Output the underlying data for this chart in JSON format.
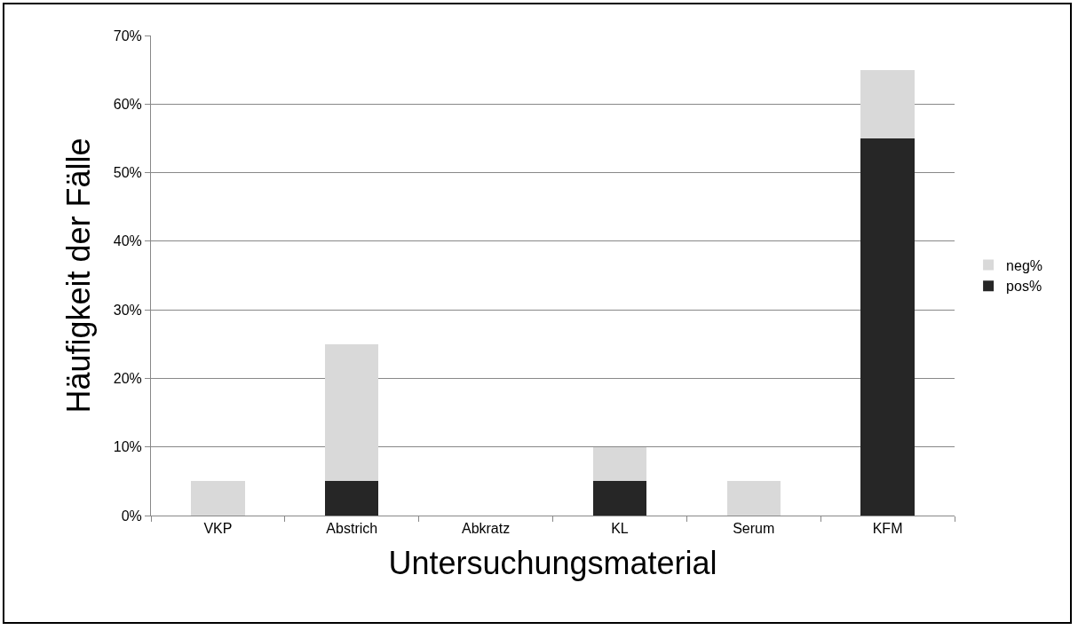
{
  "chart_data": {
    "type": "bar",
    "xlabel": "Untersuchungsmaterial",
    "ylabel": "Häufigkeit der Fälle",
    "categories": [
      "VKP",
      "Abstrich",
      "Abkratz",
      "KL",
      "Serum",
      "KFM"
    ],
    "series": [
      {
        "name": "pos%",
        "color": "#262626",
        "values": [
          0,
          5,
          0,
          5,
          0,
          55
        ]
      },
      {
        "name": "neg%",
        "color": "#d9d9d9",
        "values": [
          5,
          20,
          0,
          5,
          5,
          10
        ]
      }
    ],
    "stacked": true,
    "ylim": [
      0,
      70
    ],
    "yticks": [
      {
        "value": 0,
        "label": "0%"
      },
      {
        "value": 10,
        "label": "10%"
      },
      {
        "value": 20,
        "label": "20%"
      },
      {
        "value": 30,
        "label": "30%"
      },
      {
        "value": 40,
        "label": "40%"
      },
      {
        "value": 50,
        "label": "50%"
      },
      {
        "value": 60,
        "label": "60%"
      },
      {
        "value": 70,
        "label": "70%"
      }
    ],
    "grid": "y",
    "legend": "right"
  }
}
